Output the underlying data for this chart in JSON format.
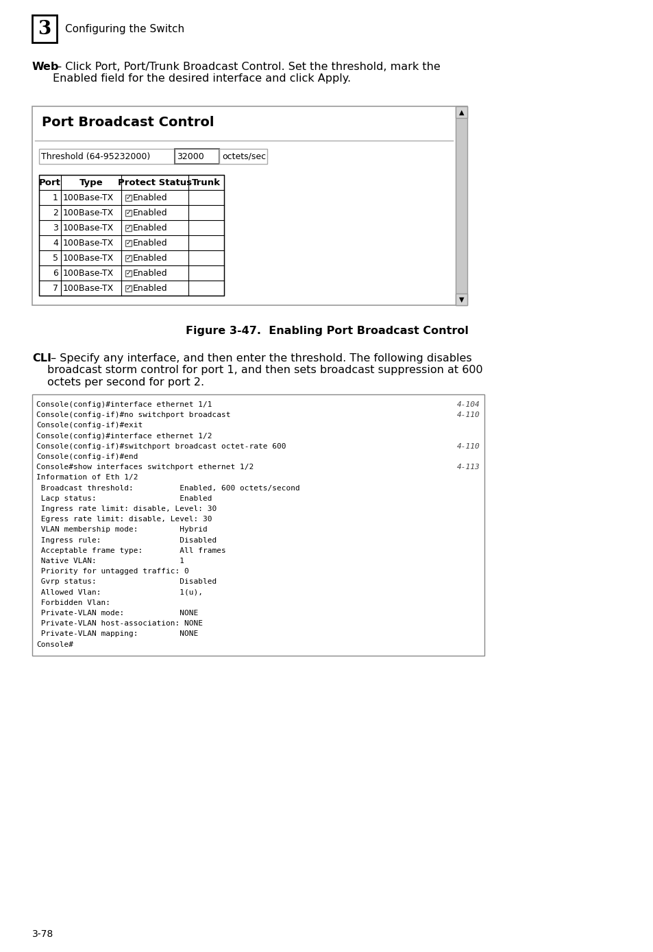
{
  "page_number": "3-78",
  "chapter_number": "3",
  "chapter_title": "Configuring the Switch",
  "intro_text_bold": "Web",
  "intro_text_rest": " – Click Port, Port/Trunk Broadcast Control. Set the threshold, mark the\nEnabled field for the desired interface and click Apply.",
  "panel_title": "Port Broadcast Control",
  "threshold_label": "Threshold (64-95232000)",
  "threshold_value": "32000",
  "threshold_unit": "octets/sec",
  "table_headers": [
    "Port",
    "Type",
    "Protect Status",
    "Trunk"
  ],
  "table_rows": [
    [
      "1",
      "100Base-TX",
      "Enabled",
      ""
    ],
    [
      "2",
      "100Base-TX",
      "Enabled",
      ""
    ],
    [
      "3",
      "100Base-TX",
      "Enabled",
      ""
    ],
    [
      "4",
      "100Base-TX",
      "Enabled",
      ""
    ],
    [
      "5",
      "100Base-TX",
      "Enabled",
      ""
    ],
    [
      "6",
      "100Base-TX",
      "Enabled",
      ""
    ],
    [
      "7",
      "100Base-TX",
      "Enabled",
      ""
    ]
  ],
  "figure_caption": "Figure 3-47.  Enabling Port Broadcast Control",
  "cli_text_bold": "CLI",
  "cli_text_rest": " – Specify any interface, and then enter the threshold. The following disables\nbroadcast storm control for port 1, and then sets broadcast suppression at 600\noctets per second for port 2.",
  "cli_code_lines": [
    [
      "Console(config)#interface ethernet 1/1",
      "4-104"
    ],
    [
      "Console(config-if)#no switchport broadcast",
      "4-110"
    ],
    [
      "Console(config-if)#exit",
      ""
    ],
    [
      "Console(config)#interface ethernet 1/2",
      ""
    ],
    [
      "Console(config-if)#switchport broadcast octet-rate 600",
      "4-110"
    ],
    [
      "Console(config-if)#end",
      ""
    ],
    [
      "Console#show interfaces switchport ethernet 1/2",
      "4-113"
    ],
    [
      "Information of Eth 1/2",
      ""
    ],
    [
      " Broadcast threshold:          Enabled, 600 octets/second",
      ""
    ],
    [
      " Lacp status:                  Enabled",
      ""
    ],
    [
      " Ingress rate limit: disable, Level: 30",
      ""
    ],
    [
      " Egress rate limit: disable, Level: 30",
      ""
    ],
    [
      " VLAN membership mode:         Hybrid",
      ""
    ],
    [
      " Ingress rule:                 Disabled",
      ""
    ],
    [
      " Acceptable frame type:        All frames",
      ""
    ],
    [
      " Native VLAN:                  1",
      ""
    ],
    [
      " Priority for untagged traffic: 0",
      ""
    ],
    [
      " Gvrp status:                  Disabled",
      ""
    ],
    [
      " Allowed Vlan:                 1(u),",
      ""
    ],
    [
      " Forbidden Vlan:",
      ""
    ],
    [
      " Private-VLAN mode:            NONE",
      ""
    ],
    [
      " Private-VLAN host-association: NONE",
      ""
    ],
    [
      " Private-VLAN mapping:         NONE",
      ""
    ],
    [
      "Console#",
      ""
    ]
  ],
  "bg_color": "#ffffff"
}
